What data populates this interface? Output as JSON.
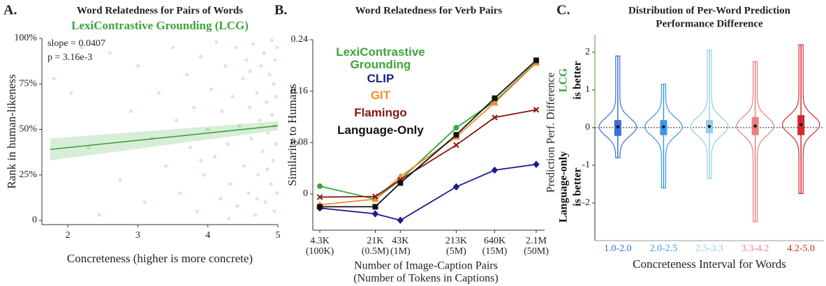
{
  "chart_data": [
    {
      "type": "scatter",
      "panel_label": "A.",
      "title": "Word Relatedness for Pairs of Words",
      "subtitle": "LexiContrastive Grounding (LCG)",
      "annotations": [
        "slope = 0.0407",
        "p = 3.16e-3"
      ],
      "xlabel": "Concreteness (higher is more concrete)",
      "ylabel": "Rank in human-likeness",
      "color": "#3aa53a",
      "xlim": [
        1.63,
        5
      ],
      "xticks": [
        2,
        3,
        4,
        5
      ],
      "ylim": [
        -2.3,
        100
      ],
      "yticks": [
        0,
        {
          "value": 25,
          "label": "25%"
        },
        {
          "value": 50,
          "label": "50%"
        },
        {
          "value": 75,
          "label": "75%"
        },
        {
          "value": 100,
          "label": "100%"
        }
      ],
      "points": {
        "x": [
          1.8,
          2.05,
          2.2,
          2.3,
          2.45,
          2.6,
          2.75,
          2.9,
          3.0,
          3.1,
          3.2,
          3.3,
          3.4,
          3.5,
          3.55,
          3.6,
          3.7,
          3.75,
          3.8,
          3.85,
          3.9,
          3.95,
          4.0,
          4.05,
          4.1,
          4.12,
          4.18,
          4.2,
          4.25,
          4.28,
          4.32,
          4.35,
          4.4,
          4.42,
          4.45,
          4.5,
          4.52,
          4.55,
          4.58,
          4.6,
          4.62,
          4.65,
          4.68,
          4.7,
          4.72,
          4.74,
          4.76,
          4.78,
          4.8,
          4.82,
          4.84,
          4.86,
          4.88,
          4.9,
          4.91,
          4.92,
          4.93,
          4.94,
          4.95,
          4.96,
          4.97,
          4.98,
          4.99,
          4.99,
          4.3,
          3.9,
          4.6,
          4.85,
          4.7,
          4.95
        ],
        "y": [
          78,
          70,
          95,
          40,
          3,
          92,
          22,
          60,
          85,
          10,
          45,
          70,
          30,
          95,
          55,
          15,
          80,
          40,
          62,
          5,
          90,
          25,
          50,
          72,
          35,
          98,
          12,
          60,
          85,
          42,
          20,
          68,
          95,
          8,
          52,
          78,
          30,
          88,
          15,
          62,
          45,
          97,
          3,
          70,
          25,
          55,
          85,
          38,
          92,
          10,
          65,
          48,
          80,
          20,
          99,
          58,
          33,
          75,
          5,
          88,
          42,
          68,
          15,
          95,
          1,
          33,
          82,
          28,
          12,
          52
        ]
      },
      "fit": {
        "x": [
          1.75,
          5
        ],
        "values": [
          39,
          52
        ],
        "band_low": [
          33,
          49.5
        ],
        "band_high": [
          45,
          54.5
        ]
      }
    },
    {
      "type": "line",
      "panel_label": "B.",
      "title": "Word Relatedness for Verb Pairs",
      "xlabel": [
        "Number of Image-Caption Pairs",
        "(Number of Tokens in Captions)"
      ],
      "ylabel": "Similarity to Humans",
      "xscale": "log",
      "xlim": [
        3516,
        2670000
      ],
      "xticks": [
        {
          "value": 4300,
          "label": "4.3K"
        },
        {
          "value": 21000,
          "label": "21K"
        },
        {
          "value": 43000,
          "label": "43K"
        },
        {
          "value": 213000,
          "label": "213K"
        },
        {
          "value": 640000,
          "label": "640K"
        },
        {
          "value": 2100000,
          "label": "2.1M"
        }
      ],
      "xtick_sublabels": [
        "(100K)",
        "(0.5M)",
        "(1M)",
        "(5M)",
        "(15M)",
        "(50M)"
      ],
      "ylim": [
        -0.0565,
        0.24
      ],
      "yticks": [
        0,
        0.08,
        0.16,
        0.24
      ],
      "x": [
        4300,
        21000,
        43000,
        213000,
        640000,
        2100000
      ],
      "series": [
        {
          "name": "LexiContrastive Grounding",
          "color": "#3aa53a",
          "marker": "circle",
          "values": [
            0.012,
            -0.008,
            0.022,
            0.103,
            0.144,
            0.205
          ]
        },
        {
          "name": "CLIP",
          "color": "#1a1f8c",
          "marker": "diamond",
          "values": [
            -0.022,
            -0.031,
            -0.041,
            0.011,
            0.037,
            0.046
          ]
        },
        {
          "name": "GIT",
          "color": "#f28c28",
          "marker": "triangle",
          "values": [
            -0.017,
            -0.008,
            0.027,
            0.089,
            0.142,
            0.204
          ]
        },
        {
          "name": "Flamingo",
          "color": "#8b1414",
          "marker": "cross",
          "values": [
            -0.005,
            -0.004,
            0.022,
            0.076,
            0.119,
            0.131
          ]
        },
        {
          "name": "Language-Only",
          "color": "#111111",
          "marker": "square",
          "values": [
            -0.02,
            -0.02,
            0.017,
            0.092,
            0.149,
            0.208
          ]
        }
      ]
    },
    {
      "type": "violin",
      "panel_label": "C.",
      "title": [
        "Distribution of Per-Word Prediction",
        "Performance Difference"
      ],
      "xlabel": "Concreteness Interval for Words",
      "ylabel": "Prediction Perf. Difference",
      "upper_note": [
        "LCG",
        "is better"
      ],
      "lower_note": [
        "Language-only",
        "is better"
      ],
      "upper_color": "#3aa53a",
      "ylim": [
        -3.0,
        2.46
      ],
      "yticks": [
        -2,
        -1,
        0,
        1,
        2
      ],
      "reference_line": 0,
      "categories": [
        "1.0-2.0",
        "2.0-2.5",
        "2.5-3.3",
        "3.3-4.2",
        "4.2-5.0"
      ],
      "colors": [
        "#3a6fd8",
        "#3a96e8",
        "#8fd0e6",
        "#e88080",
        "#d02a2a"
      ],
      "min": [
        -0.8,
        -1.6,
        -1.35,
        -2.5,
        -1.75
      ],
      "q1": [
        -0.22,
        -0.2,
        -0.15,
        -0.2,
        -0.2
      ],
      "median": [
        0.02,
        0.02,
        0.03,
        0.04,
        0.08
      ],
      "q3": [
        0.2,
        0.2,
        0.2,
        0.28,
        0.33
      ],
      "max": [
        1.9,
        1.15,
        2.05,
        1.75,
        2.2
      ]
    }
  ]
}
